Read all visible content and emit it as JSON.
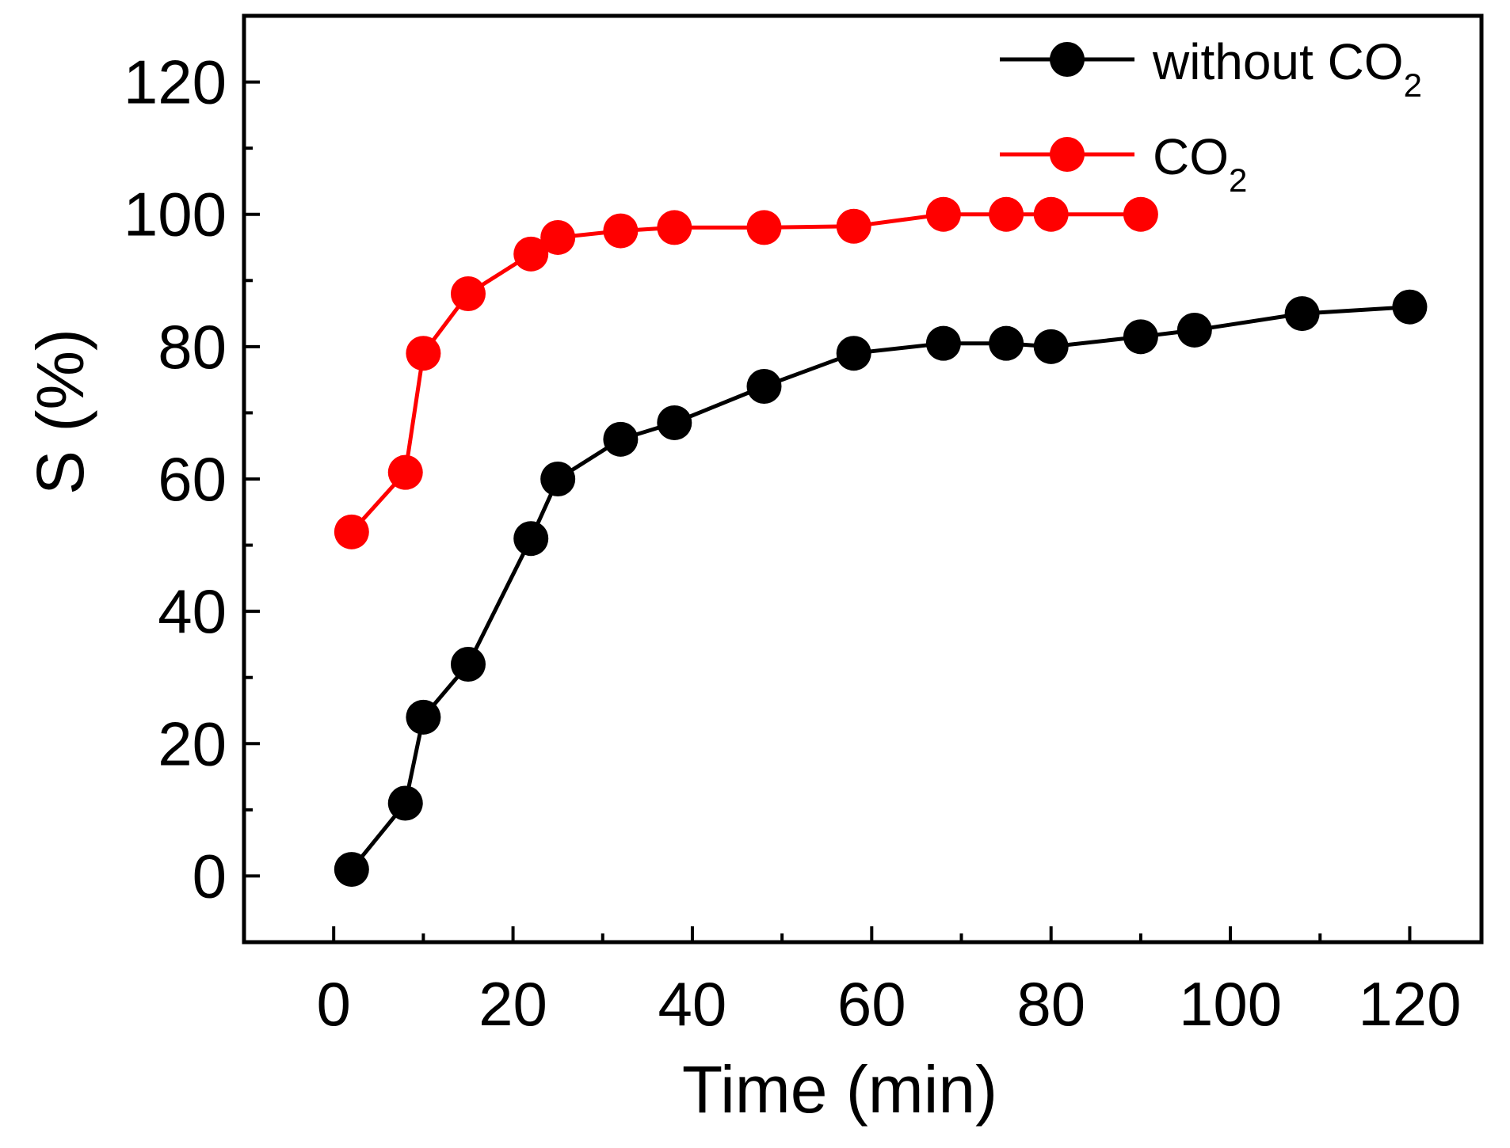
{
  "chart_data": {
    "type": "line",
    "title": "",
    "xlabel": "Time (min)",
    "ylabel": "S (%)",
    "xlim": [
      -10,
      128
    ],
    "ylim": [
      -10,
      130
    ],
    "x_ticks": [
      0,
      20,
      40,
      60,
      80,
      100,
      120
    ],
    "y_ticks": [
      0,
      20,
      40,
      60,
      80,
      100,
      120
    ],
    "x_tick_labels": [
      "0",
      "20",
      "40",
      "60",
      "80",
      "100",
      "120"
    ],
    "y_tick_labels": [
      "0",
      "20",
      "40",
      "60",
      "80",
      "100",
      "120"
    ],
    "grid": false,
    "legend_position": "top-right",
    "series": [
      {
        "name": "without CO2",
        "legend_main": "without CO",
        "legend_sub": "2",
        "color": "#000000",
        "marker": "circle",
        "x": [
          2,
          8,
          10,
          15,
          22,
          25,
          32,
          38,
          48,
          58,
          68,
          75,
          80,
          90,
          96,
          108,
          120
        ],
        "y": [
          1,
          11,
          24,
          32,
          51,
          60,
          66,
          68.5,
          74,
          79,
          80.5,
          80.5,
          80,
          81.5,
          82.5,
          85,
          86
        ]
      },
      {
        "name": "CO2",
        "legend_main": "CO",
        "legend_sub": "2",
        "color": "#ff0000",
        "marker": "circle",
        "x": [
          2,
          8,
          10,
          15,
          22,
          25,
          32,
          38,
          48,
          58,
          68,
          75,
          80,
          90
        ],
        "y": [
          52,
          61,
          79,
          88,
          94,
          96.5,
          97.5,
          98,
          98,
          98.2,
          100,
          100,
          100,
          100
        ]
      }
    ]
  }
}
